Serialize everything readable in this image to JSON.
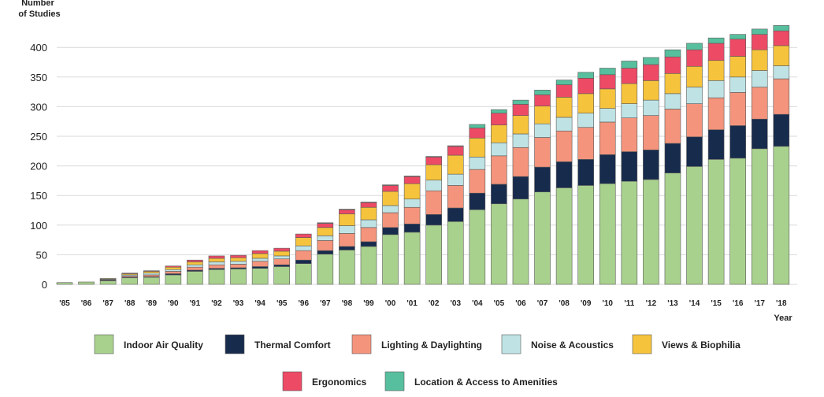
{
  "chart_data": {
    "type": "bar",
    "stacked": true,
    "ylabel_line1": "Number",
    "ylabel_line2": "of Studies",
    "xlabel": "Year",
    "ylim": [
      0,
      430
    ],
    "yticks": [
      0,
      50,
      100,
      150,
      200,
      250,
      300,
      350,
      400
    ],
    "grid": true,
    "legend_position": "bottom",
    "categories": [
      "'85",
      "'86",
      "'87",
      "'88",
      "'89",
      "'90",
      "'91",
      "'92",
      "'93",
      "'94",
      "'95",
      "'96",
      "'97",
      "'98",
      "'99",
      "'00",
      "'01",
      "'02",
      "'03",
      "'04",
      "'05",
      "'06",
      "'07",
      "'08",
      "'09",
      "'10",
      "'11",
      "'12",
      "'13",
      "'14",
      "'15",
      "'16",
      "'17",
      "'18"
    ],
    "series": [
      {
        "name": "Indoor Air Quality",
        "color": "#a9d18e",
        "values": [
          3,
          4,
          6,
          11,
          12,
          16,
          22,
          25,
          26,
          27,
          30,
          35,
          51,
          58,
          64,
          84,
          88,
          100,
          106,
          126,
          136,
          144,
          156,
          163,
          167,
          170,
          174,
          177,
          188,
          199,
          211,
          213,
          229,
          233
        ]
      },
      {
        "name": "Thermal Comfort",
        "color": "#172b4d",
        "values": [
          0,
          0,
          1,
          1,
          1,
          2,
          2,
          2,
          2,
          3,
          3,
          6,
          6,
          6,
          8,
          12,
          14,
          18,
          23,
          28,
          33,
          38,
          42,
          44,
          44,
          49,
          50,
          50,
          50,
          50,
          50,
          55,
          50,
          54
        ]
      },
      {
        "name": "Lighting & Daylighting",
        "color": "#f4947c",
        "values": [
          0,
          0,
          1,
          2,
          3,
          4,
          5,
          6,
          6,
          9,
          10,
          16,
          17,
          22,
          24,
          25,
          28,
          40,
          38,
          40,
          48,
          49,
          50,
          52,
          54,
          55,
          57,
          58,
          58,
          56,
          54,
          56,
          54,
          60
        ]
      },
      {
        "name": "Noise & Acoustics",
        "color": "#bfe3e5",
        "values": [
          0,
          0,
          1,
          2,
          3,
          3,
          4,
          5,
          5,
          5,
          5,
          8,
          8,
          13,
          13,
          12,
          14,
          18,
          19,
          21,
          22,
          23,
          23,
          23,
          24,
          23,
          24,
          26,
          26,
          28,
          29,
          26,
          28,
          22
        ]
      },
      {
        "name": "Views & Biophilia",
        "color": "#f6c33c",
        "values": [
          0,
          0,
          1,
          2,
          3,
          4,
          5,
          6,
          6,
          8,
          8,
          14,
          14,
          20,
          21,
          24,
          26,
          26,
          32,
          32,
          30,
          31,
          30,
          34,
          33,
          33,
          34,
          33,
          34,
          35,
          34,
          35,
          35,
          34
        ]
      },
      {
        "name": "Ergonomics",
        "color": "#ed4a66",
        "values": [
          0,
          0,
          0,
          1,
          1,
          2,
          3,
          4,
          4,
          5,
          5,
          6,
          7,
          7,
          8,
          10,
          12,
          13,
          15,
          17,
          20,
          19,
          19,
          21,
          26,
          24,
          26,
          27,
          28,
          28,
          29,
          29,
          26,
          25
        ]
      },
      {
        "name": "Location & Access to Amenities",
        "color": "#57bf9d",
        "values": [
          0,
          0,
          0,
          0,
          0,
          0,
          0,
          0,
          0,
          0,
          0,
          0,
          1,
          1,
          1,
          1,
          1,
          1,
          1,
          6,
          6,
          7,
          8,
          8,
          10,
          11,
          12,
          12,
          12,
          11,
          9,
          8,
          9,
          9
        ]
      }
    ]
  }
}
